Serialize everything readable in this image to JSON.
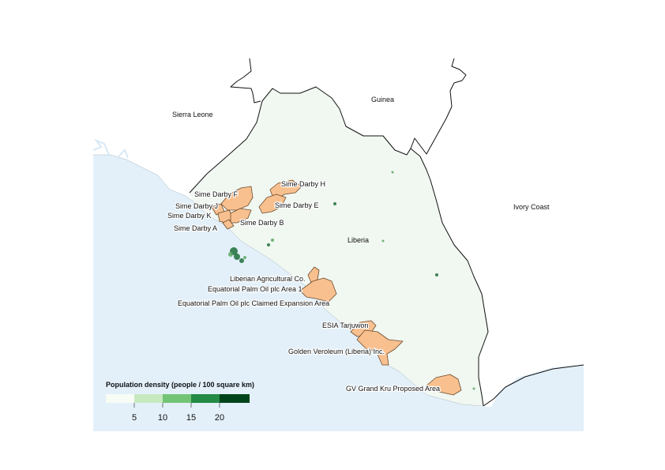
{
  "map": {
    "colors": {
      "ocean": "#e3f0fa",
      "land_liberia": "#f1f7f1",
      "concession_fill": "#f9c08f",
      "concession_stroke": "#6b4a2a",
      "border": "#111111",
      "density_dark": "#1f6e3a",
      "density_mid": "#5aa764"
    },
    "country_labels": [
      {
        "id": "sierra-leone",
        "text": "Sierra Leone"
      },
      {
        "id": "guinea",
        "text": "Guinea"
      },
      {
        "id": "ivory-coast",
        "text": "Ivory Coast"
      },
      {
        "id": "liberia",
        "text": "Liberia"
      }
    ],
    "concession_labels": [
      {
        "id": "sime-darby-h",
        "text": "Sime Darby H"
      },
      {
        "id": "sime-darby-f",
        "text": "Sime Darby F"
      },
      {
        "id": "sime-darby-e",
        "text": "Sime Darby E"
      },
      {
        "id": "sime-darby-j",
        "text": "Sime Darby J"
      },
      {
        "id": "sime-darby-k",
        "text": "Sime Darby K"
      },
      {
        "id": "sime-darby-b",
        "text": "Sime Darby B"
      },
      {
        "id": "sime-darby-a",
        "text": "Sime Darby A"
      },
      {
        "id": "liberian-agricultural-co",
        "text": "Liberian Agricultural Co."
      },
      {
        "id": "equatorial-palm-oil-area-1",
        "text": "Equatorial Palm Oil plc Area 1"
      },
      {
        "id": "equatorial-palm-oil-expansion",
        "text": "Equatorial Palm Oil plc Claimed Expansion Area"
      },
      {
        "id": "esia-tarjuwon",
        "text": "ESIA Tarjuwon"
      },
      {
        "id": "golden-veroleum",
        "text": "Golden Veroleum (Liberia) Inc."
      },
      {
        "id": "gv-grand-kru",
        "text": "GV Grand Kru Proposed Area"
      }
    ],
    "legend": {
      "title": "Population density (people / 100 square km)",
      "colors": [
        "#f7fcf5",
        "#c7e9c0",
        "#74c476",
        "#238b45",
        "#00441b"
      ],
      "ticks": [
        "5",
        "10",
        "15",
        "20"
      ]
    }
  }
}
